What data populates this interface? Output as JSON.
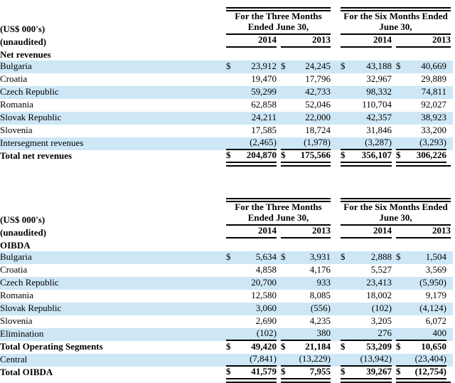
{
  "colors": {
    "row_stripe": "#cde7f6",
    "rule": "#000000"
  },
  "tables": [
    {
      "name": "Net revenues",
      "unit_label": "(US$ 000's)",
      "status_label": "(unaudited)",
      "section_label": "Net revenues",
      "groups": [
        {
          "title": "For the Three Months\nEnded June 30,",
          "years": [
            "2014",
            "2013"
          ]
        },
        {
          "title": "For the Six Months Ended\nJune 30,",
          "years": [
            "2014",
            "2013"
          ]
        }
      ],
      "rows": [
        {
          "label": "Bulgaria",
          "currency": "$",
          "values": [
            "23,912",
            "24,245",
            "43,188",
            "40,669"
          ]
        },
        {
          "label": "Croatia",
          "values": [
            "19,470",
            "17,796",
            "32,967",
            "29,889"
          ]
        },
        {
          "label": "Czech Republic",
          "values": [
            "59,299",
            "42,733",
            "98,332",
            "74,811"
          ]
        },
        {
          "label": "Romania",
          "values": [
            "62,858",
            "52,046",
            "110,704",
            "92,027"
          ]
        },
        {
          "label": "Slovak Republic",
          "values": [
            "24,211",
            "22,000",
            "42,357",
            "38,923"
          ]
        },
        {
          "label": "Slovenia",
          "values": [
            "17,585",
            "18,724",
            "31,846",
            "33,200"
          ]
        },
        {
          "label": "Intersegment revenues",
          "values": [
            "(2,465)",
            "(1,978)",
            "(3,287)",
            "(3,293)"
          ]
        },
        {
          "label": "Total net revenues",
          "currency": "$",
          "values": [
            "204,870",
            "175,566",
            "356,107",
            "306,226"
          ]
        }
      ]
    },
    {
      "name": "OIBDA",
      "unit_label": "(US$ 000's)",
      "status_label": "(unaudited)",
      "section_label": "OIBDA",
      "groups": [
        {
          "title": "For the Three Months\nEnded June 30,",
          "years": [
            "2014",
            "2013"
          ]
        },
        {
          "title": "For the Six Months Ended\nJune 30,",
          "years": [
            "2014",
            "2013"
          ]
        }
      ],
      "rows": [
        {
          "label": "Bulgaria",
          "currency": "$",
          "values": [
            "5,634",
            "3,931",
            "2,888",
            "1,504"
          ]
        },
        {
          "label": "Croatia",
          "values": [
            "4,858",
            "4,176",
            "5,527",
            "3,569"
          ]
        },
        {
          "label": "Czech Republic",
          "values": [
            "20,700",
            "933",
            "23,413",
            "(5,950)"
          ]
        },
        {
          "label": "Romania",
          "values": [
            "12,580",
            "8,085",
            "18,002",
            "9,179"
          ]
        },
        {
          "label": "Slovak Republic",
          "values": [
            "3,060",
            "(556)",
            "(102)",
            "(4,124)"
          ]
        },
        {
          "label": "Slovenia",
          "values": [
            "2,690",
            "4,235",
            "3,205",
            "6,072"
          ]
        },
        {
          "label": "Elimination",
          "values": [
            "(102)",
            "380",
            "276",
            "400"
          ]
        },
        {
          "label": "Total Operating Segments",
          "currency": "$",
          "values": [
            "49,420",
            "21,184",
            "53,209",
            "10,650"
          ]
        },
        {
          "label": "Central",
          "values": [
            "(7,841)",
            "(13,229)",
            "(13,942)",
            "(23,404)"
          ]
        },
        {
          "label": "Total OIBDA",
          "currency": "$",
          "values": [
            "41,579",
            "7,955",
            "39,267",
            "(12,754)"
          ]
        }
      ]
    }
  ]
}
